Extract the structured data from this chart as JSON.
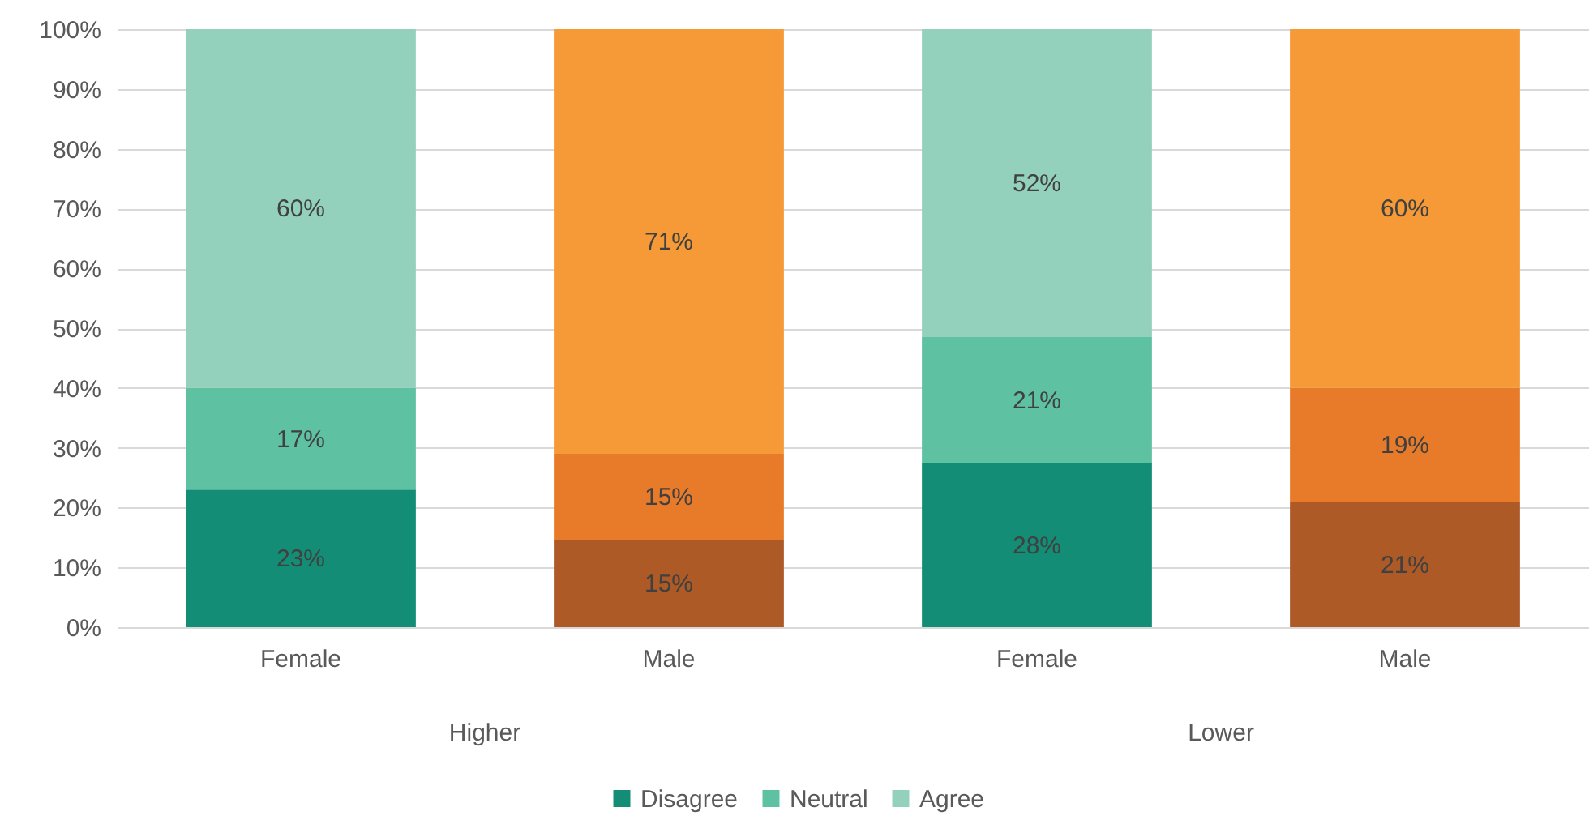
{
  "chart_data": {
    "type": "bar",
    "stacked": true,
    "categories": [
      "Female",
      "Male",
      "Female",
      "Male"
    ],
    "series": [
      {
        "name": "Disagree",
        "color": "#138d75",
        "colors": [
          "#138d75",
          "#ae5a26",
          "#138d75",
          "#ae5a26"
        ],
        "values": [
          23,
          14.5,
          27.5,
          21
        ],
        "value_labels": [
          "23%",
          "15%",
          "28%",
          "21%"
        ]
      },
      {
        "name": "Neutral",
        "color": "#5ec1a2",
        "colors": [
          "#5ec1a2",
          "#e87b2a",
          "#5ec1a2",
          "#e87b2a"
        ],
        "values": [
          17,
          14.5,
          21,
          19
        ],
        "value_labels": [
          "17%",
          "15%",
          "21%",
          "19%"
        ]
      },
      {
        "name": "Agree",
        "color": "#93d1bd",
        "colors": [
          "#93d1bd",
          "#f59a36",
          "#93d1bd",
          "#f59a36"
        ],
        "values": [
          60,
          71,
          51.5,
          60
        ],
        "value_labels": [
          "60%",
          "71%",
          "52%",
          "60%"
        ]
      }
    ],
    "annotations": [
      "Higher",
      "Lower"
    ],
    "ylim": [
      0,
      100
    ],
    "yticks": [
      {
        "value": 0,
        "label": "0%"
      },
      {
        "value": 10,
        "label": "10%"
      },
      {
        "value": 20,
        "label": "20%"
      },
      {
        "value": 30,
        "label": "30%"
      },
      {
        "value": 40,
        "label": "40%"
      },
      {
        "value": 50,
        "label": "50%"
      },
      {
        "value": 60,
        "label": "60%"
      },
      {
        "value": 70,
        "label": "70%"
      },
      {
        "value": 80,
        "label": "80%"
      },
      {
        "value": 90,
        "label": "90%"
      },
      {
        "value": 100,
        "label": "100%"
      }
    ],
    "grid": "y",
    "legend": "bottom"
  }
}
